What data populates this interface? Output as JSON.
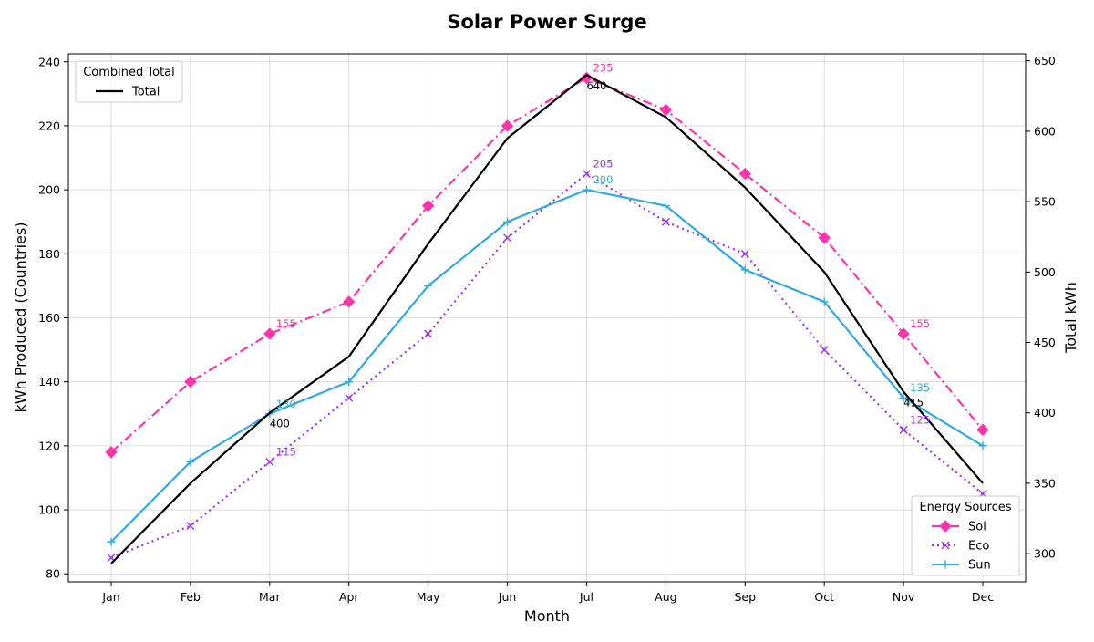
{
  "chart_data": {
    "type": "line",
    "title": "Solar Power Surge",
    "xlabel": "Month",
    "ylabel": "kWh Produced (Countries)",
    "y2label": "Total kWh",
    "categories": [
      "Jan",
      "Feb",
      "Mar",
      "Apr",
      "May",
      "Jun",
      "Jul",
      "Aug",
      "Sep",
      "Oct",
      "Nov",
      "Dec"
    ],
    "ylim": [
      77.5,
      242.5
    ],
    "yticks": [
      80,
      100,
      120,
      140,
      160,
      180,
      200,
      220,
      240
    ],
    "y2lim": [
      280,
      655
    ],
    "y2ticks": [
      300,
      350,
      400,
      450,
      500,
      550,
      600,
      650
    ],
    "grid": true,
    "series": [
      {
        "name": "Sol",
        "axis": "left",
        "color": "#ff33aa",
        "dash": "dashdot",
        "marker": "diamond",
        "values": [
          118,
          140,
          155,
          165,
          195,
          220,
          235,
          225,
          205,
          185,
          155,
          125
        ]
      },
      {
        "name": "Eco",
        "axis": "left",
        "color": "#a033ee",
        "dash": "dotted",
        "marker": "x",
        "values": [
          85,
          95,
          115,
          135,
          155,
          185,
          205,
          190,
          180,
          150,
          125,
          105
        ]
      },
      {
        "name": "Sun",
        "axis": "left",
        "color": "#33aadd",
        "dash": "solid",
        "marker": "plus",
        "values": [
          90,
          115,
          130,
          140,
          170,
          190,
          200,
          195,
          175,
          165,
          135,
          120
        ]
      },
      {
        "name": "Total",
        "axis": "right",
        "color": "#000000",
        "dash": "solid",
        "marker": "none",
        "values": [
          293,
          350,
          400,
          440,
          520,
          595,
          640,
          610,
          560,
          500,
          415,
          350
        ]
      }
    ],
    "annotations": [
      {
        "series": "Sol",
        "index": 2,
        "text": "155"
      },
      {
        "series": "Sol",
        "index": 6,
        "text": "235"
      },
      {
        "series": "Sol",
        "index": 10,
        "text": "155"
      },
      {
        "series": "Eco",
        "index": 2,
        "text": "115"
      },
      {
        "series": "Eco",
        "index": 6,
        "text": "205"
      },
      {
        "series": "Eco",
        "index": 10,
        "text": "125"
      },
      {
        "series": "Sun",
        "index": 2,
        "text": "130"
      },
      {
        "series": "Sun",
        "index": 6,
        "text": "200"
      },
      {
        "series": "Sun",
        "index": 10,
        "text": "135"
      },
      {
        "series": "Total",
        "index": 2,
        "text": "400"
      },
      {
        "series": "Total",
        "index": 6,
        "text": "640"
      },
      {
        "series": "Total",
        "index": 10,
        "text": "415"
      }
    ],
    "legends": [
      {
        "title": "Combined Total",
        "placement": "top-left",
        "entries": [
          "Total"
        ]
      },
      {
        "title": "Energy Sources",
        "placement": "bottom-right",
        "entries": [
          "Sol",
          "Eco",
          "Sun"
        ]
      }
    ]
  }
}
